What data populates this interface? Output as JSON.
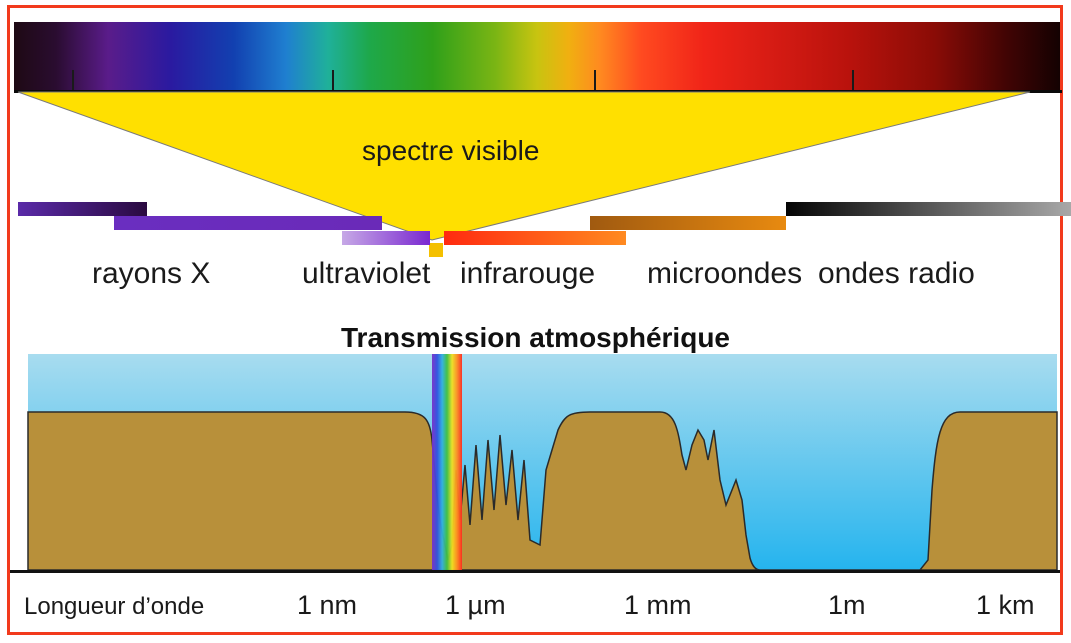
{
  "visible_spectrum_label": "spectre visible",
  "band_labels": {
    "xray": "rayons X",
    "uv": "ultraviolet",
    "ir": "infrarouge",
    "micro": "microondes",
    "radio": "ondes radio"
  },
  "atmospheric_title": "Transmission atmosphérique",
  "axis": {
    "label": "Longueur d’onde",
    "ticks": [
      "1 nm",
      "1 µm",
      "1 mm",
      "1m",
      "1 km"
    ]
  },
  "colors": {
    "frame": "#f23a1c",
    "cone": "#ffe000",
    "sky": "#4ec6f0",
    "ground": "#b8903a"
  }
}
